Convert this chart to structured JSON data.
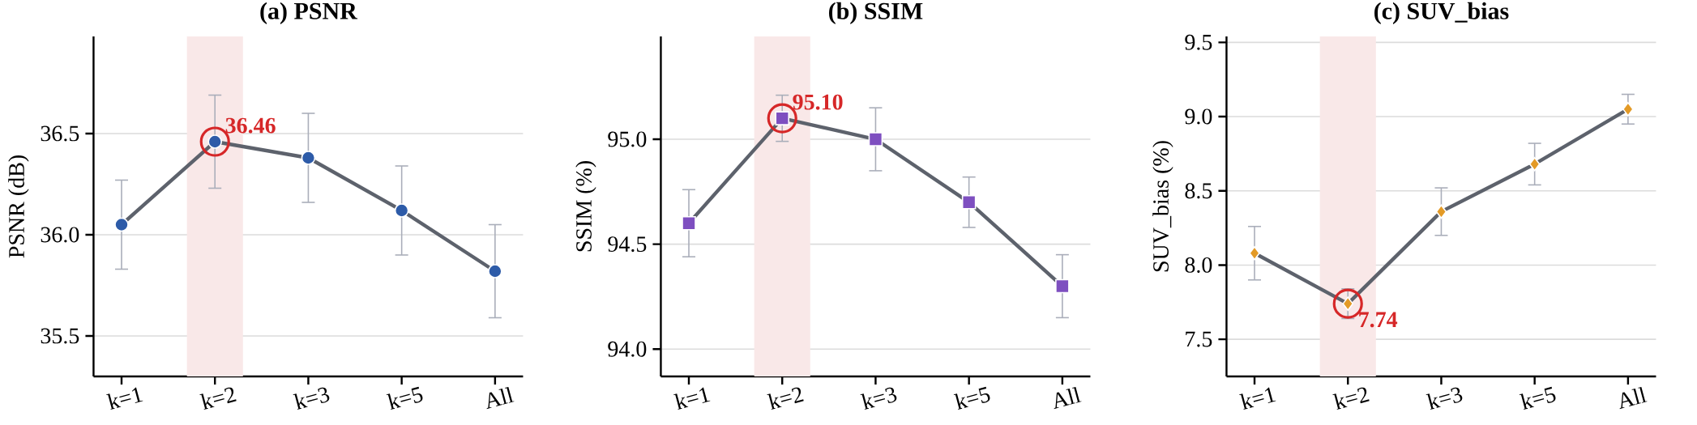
{
  "chart_data": [
    {
      "type": "line",
      "title": "(a) PSNR",
      "ylabel": "PSNR (dB)",
      "categories": [
        "k=1",
        "k=2",
        "k=3",
        "k=5",
        "All"
      ],
      "series": [
        {
          "color": "#5d626c",
          "colors": [
            "#2d5ba8",
            "#2d5ba8",
            "#2d5ba8",
            "#2d5ba8",
            "#2d5ba8"
          ],
          "values": [
            36.05,
            36.46,
            36.38,
            36.12,
            35.82
          ],
          "errors": [
            0.22,
            0.23,
            0.22,
            0.22,
            0.23
          ]
        }
      ],
      "ylim": [
        35.3,
        36.98
      ],
      "yticks": [
        35.5,
        {
          "value": 36,
          "label": "36.0"
        },
        36.5
      ],
      "grid": "y",
      "marker": "circle",
      "bands": [
        {
          "axis": "x",
          "from": "k=2",
          "to": "k=2",
          "color": "#f9e8e8"
        }
      ],
      "annotations": [
        {
          "text": "36.46",
          "x": "k=2",
          "y": 36.46
        }
      ]
    },
    {
      "type": "line",
      "title": "(b) SSIM",
      "ylabel": "SSIM (%)",
      "categories": [
        "k=1",
        "k=2",
        "k=3",
        "k=5",
        "All"
      ],
      "series": [
        {
          "color": "#5d626c",
          "colors": [
            "#7e4fc0",
            "#7e4fc0",
            "#7e4fc0",
            "#7e4fc0",
            "#7e4fc0"
          ],
          "values": [
            94.6,
            95.1,
            95.0,
            94.7,
            94.3
          ],
          "errors": [
            0.16,
            0.11,
            0.15,
            0.12,
            0.15
          ]
        }
      ],
      "ylim": [
        93.87,
        95.49
      ],
      "yticks": [
        {
          "value": 94,
          "label": "94.0"
        },
        94.5,
        {
          "value": 95,
          "label": "95.0"
        }
      ],
      "grid": "y",
      "marker": "square",
      "bands": [
        {
          "axis": "x",
          "from": "k=2",
          "to": "k=2",
          "color": "#f9e8e8"
        }
      ],
      "annotations": [
        {
          "text": "95.10",
          "x": "k=2",
          "y": 95.1
        }
      ]
    },
    {
      "type": "line",
      "title": "(c) SUV_bias",
      "ylabel": "SUV_bias (%)",
      "categories": [
        "k=1",
        "k=2",
        "k=3",
        "k=5",
        "All"
      ],
      "series": [
        {
          "color": "#5d626c",
          "colors": [
            "#e39a26",
            "#e39a26",
            "#e39a26",
            "#e39a26",
            "#e39a26"
          ],
          "values": [
            8.08,
            7.74,
            8.36,
            8.68,
            9.05
          ],
          "errors": [
            0.18,
            0.1,
            0.16,
            0.14,
            0.1
          ]
        }
      ],
      "ylim": [
        7.25,
        9.54
      ],
      "yticks": [
        7.5,
        {
          "value": 8,
          "label": "8.0"
        },
        8.5,
        {
          "value": 9,
          "label": "9.0"
        },
        9.5
      ],
      "grid": "y",
      "marker": "diamond",
      "bands": [
        {
          "axis": "x",
          "from": "k=2",
          "to": "k=2",
          "color": "#f9e8e8"
        }
      ],
      "annotations": [
        {
          "text": "7.74",
          "x": "k=2",
          "y": 7.74
        }
      ]
    }
  ]
}
